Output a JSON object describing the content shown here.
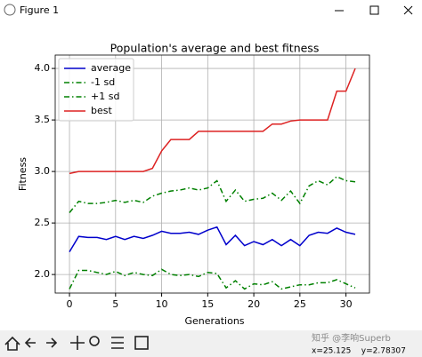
{
  "window": {
    "title": "Figure 1",
    "status": "x=25.125    y=2.78307",
    "watermark": "知乎 @李响Superb"
  },
  "chart_data": {
    "type": "line",
    "title": "Population's average and best fitness",
    "xlabel": "Generations",
    "ylabel": "Fitness",
    "x": [
      0,
      1,
      2,
      3,
      4,
      5,
      6,
      7,
      8,
      9,
      10,
      11,
      12,
      13,
      14,
      15,
      16,
      17,
      18,
      19,
      20,
      21,
      22,
      23,
      24,
      25,
      26,
      27,
      28,
      29,
      30,
      31
    ],
    "series": [
      {
        "name": "average",
        "color": "#0000cc",
        "linestyle": "solid",
        "values": [
          2.22,
          2.37,
          2.36,
          2.36,
          2.34,
          2.37,
          2.34,
          2.37,
          2.35,
          2.38,
          2.42,
          2.4,
          2.4,
          2.41,
          2.39,
          2.43,
          2.46,
          2.29,
          2.38,
          2.28,
          2.32,
          2.29,
          2.34,
          2.28,
          2.34,
          2.28,
          2.38,
          2.41,
          2.4,
          2.45,
          2.41,
          2.39
        ]
      },
      {
        "name": "-1 sd",
        "color": "#008000",
        "linestyle": "dashdot",
        "values": [
          1.86,
          2.04,
          2.04,
          2.02,
          2.0,
          2.03,
          1.99,
          2.02,
          2.0,
          1.99,
          2.05,
          2.0,
          1.99,
          2.0,
          1.98,
          2.02,
          2.01,
          1.87,
          1.94,
          1.86,
          1.91,
          1.9,
          1.93,
          1.86,
          1.88,
          1.9,
          1.9,
          1.92,
          1.92,
          1.95,
          1.91,
          1.87
        ]
      },
      {
        "name": "+1 sd",
        "color": "#008000",
        "linestyle": "dashdot",
        "values": [
          2.6,
          2.71,
          2.69,
          2.69,
          2.7,
          2.72,
          2.7,
          2.72,
          2.7,
          2.76,
          2.79,
          2.81,
          2.82,
          2.84,
          2.82,
          2.84,
          2.91,
          2.71,
          2.82,
          2.71,
          2.73,
          2.74,
          2.79,
          2.72,
          2.81,
          2.69,
          2.86,
          2.91,
          2.87,
          2.95,
          2.91,
          2.9
        ]
      },
      {
        "name": "best",
        "color": "#dd2222",
        "linestyle": "solid",
        "values": [
          2.98,
          3.0,
          3.0,
          3.0,
          3.0,
          3.0,
          3.0,
          3.0,
          3.0,
          3.03,
          3.2,
          3.31,
          3.31,
          3.31,
          3.39,
          3.39,
          3.39,
          3.39,
          3.39,
          3.39,
          3.39,
          3.39,
          3.46,
          3.46,
          3.49,
          3.5,
          3.5,
          3.5,
          3.5,
          3.78,
          3.78,
          4.0
        ]
      }
    ],
    "xlim": [
      -1.55,
      32.55
    ],
    "xticks": [
      0,
      5,
      10,
      15,
      20,
      25,
      30
    ],
    "ylim": [
      1.82,
      4.13
    ],
    "yticks": [
      {
        "value": 2,
        "label": "2.0"
      },
      2.5,
      {
        "value": 3,
        "label": "3.0"
      },
      3.5,
      {
        "value": 4,
        "label": "4.0"
      }
    ],
    "grid": true,
    "legend": "upper left"
  }
}
